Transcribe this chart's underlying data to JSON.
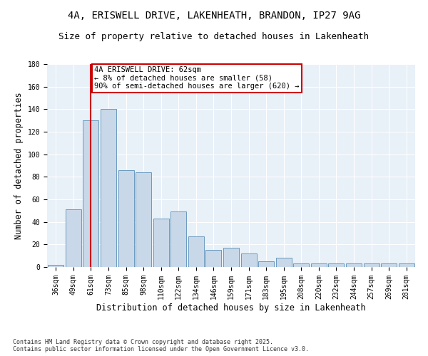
{
  "title_line1": "4A, ERISWELL DRIVE, LAKENHEATH, BRANDON, IP27 9AG",
  "title_line2": "Size of property relative to detached houses in Lakenheath",
  "xlabel": "Distribution of detached houses by size in Lakenheath",
  "ylabel": "Number of detached properties",
  "categories": [
    "36sqm",
    "49sqm",
    "61sqm",
    "73sqm",
    "85sqm",
    "98sqm",
    "110sqm",
    "122sqm",
    "134sqm",
    "146sqm",
    "159sqm",
    "171sqm",
    "183sqm",
    "195sqm",
    "208sqm",
    "220sqm",
    "232sqm",
    "244sqm",
    "257sqm",
    "269sqm",
    "281sqm"
  ],
  "values": [
    2,
    51,
    130,
    140,
    86,
    84,
    43,
    49,
    27,
    15,
    17,
    12,
    5,
    8,
    3,
    3,
    3,
    3,
    3,
    3,
    3
  ],
  "bar_color": "#c8d8e8",
  "bar_edge_color": "#6a9abf",
  "background_color": "#e8f0f8",
  "vline_x": 2,
  "vline_color": "#cc0000",
  "annotation_text": "4A ERISWELL DRIVE: 62sqm\n← 8% of detached houses are smaller (58)\n90% of semi-detached houses are larger (620) →",
  "annotation_box_color": "#cc0000",
  "ylim": [
    0,
    180
  ],
  "yticks": [
    0,
    20,
    40,
    60,
    80,
    100,
    120,
    140,
    160,
    180
  ],
  "footer": "Contains HM Land Registry data © Crown copyright and database right 2025.\nContains public sector information licensed under the Open Government Licence v3.0.",
  "title_fontsize": 10,
  "subtitle_fontsize": 9,
  "axis_label_fontsize": 8.5,
  "tick_fontsize": 7,
  "annotation_fontsize": 7.5
}
